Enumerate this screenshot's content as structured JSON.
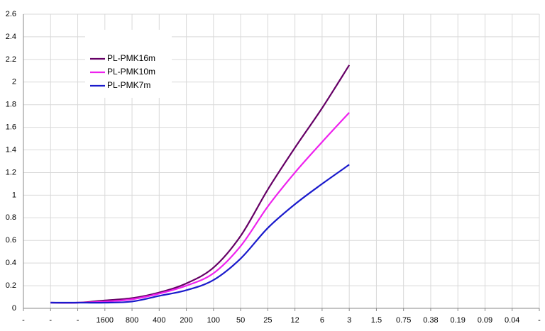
{
  "chart_data": {
    "type": "line",
    "categories": [
      "-",
      "-",
      "-",
      "1600",
      "800",
      "400",
      "200",
      "100",
      "50",
      "25",
      "12",
      "6",
      "3",
      "1.5",
      "0.75",
      "0.38",
      "0.19",
      "0.09",
      "0.04",
      "-"
    ],
    "series": [
      {
        "name": "PL-PMK16m",
        "color": "#660066",
        "values": [
          null,
          0.05,
          0.05,
          0.07,
          0.09,
          0.14,
          0.22,
          0.36,
          0.64,
          1.05,
          1.42,
          1.77,
          2.15,
          null,
          null,
          null,
          null,
          null,
          null,
          null
        ]
      },
      {
        "name": "PL-PMK10m",
        "color": "#ee22ee",
        "values": [
          null,
          0.05,
          0.05,
          0.06,
          0.08,
          0.13,
          0.2,
          0.31,
          0.55,
          0.9,
          1.2,
          1.47,
          1.73,
          null,
          null,
          null,
          null,
          null,
          null,
          null
        ]
      },
      {
        "name": "PL-PMK7m",
        "color": "#1a1acc",
        "values": [
          null,
          0.05,
          0.05,
          0.05,
          0.06,
          0.11,
          0.16,
          0.25,
          0.44,
          0.71,
          0.92,
          1.1,
          1.27,
          null,
          null,
          null,
          null,
          null,
          null,
          null
        ]
      }
    ],
    "ylim": [
      0,
      2.6
    ],
    "yticks": [
      0,
      0.2,
      0.4,
      0.6,
      0.8,
      1,
      1.2,
      1.4,
      1.6,
      1.8,
      2,
      2.2,
      2.4,
      2.6
    ],
    "grid": true,
    "legend": "upper left"
  }
}
